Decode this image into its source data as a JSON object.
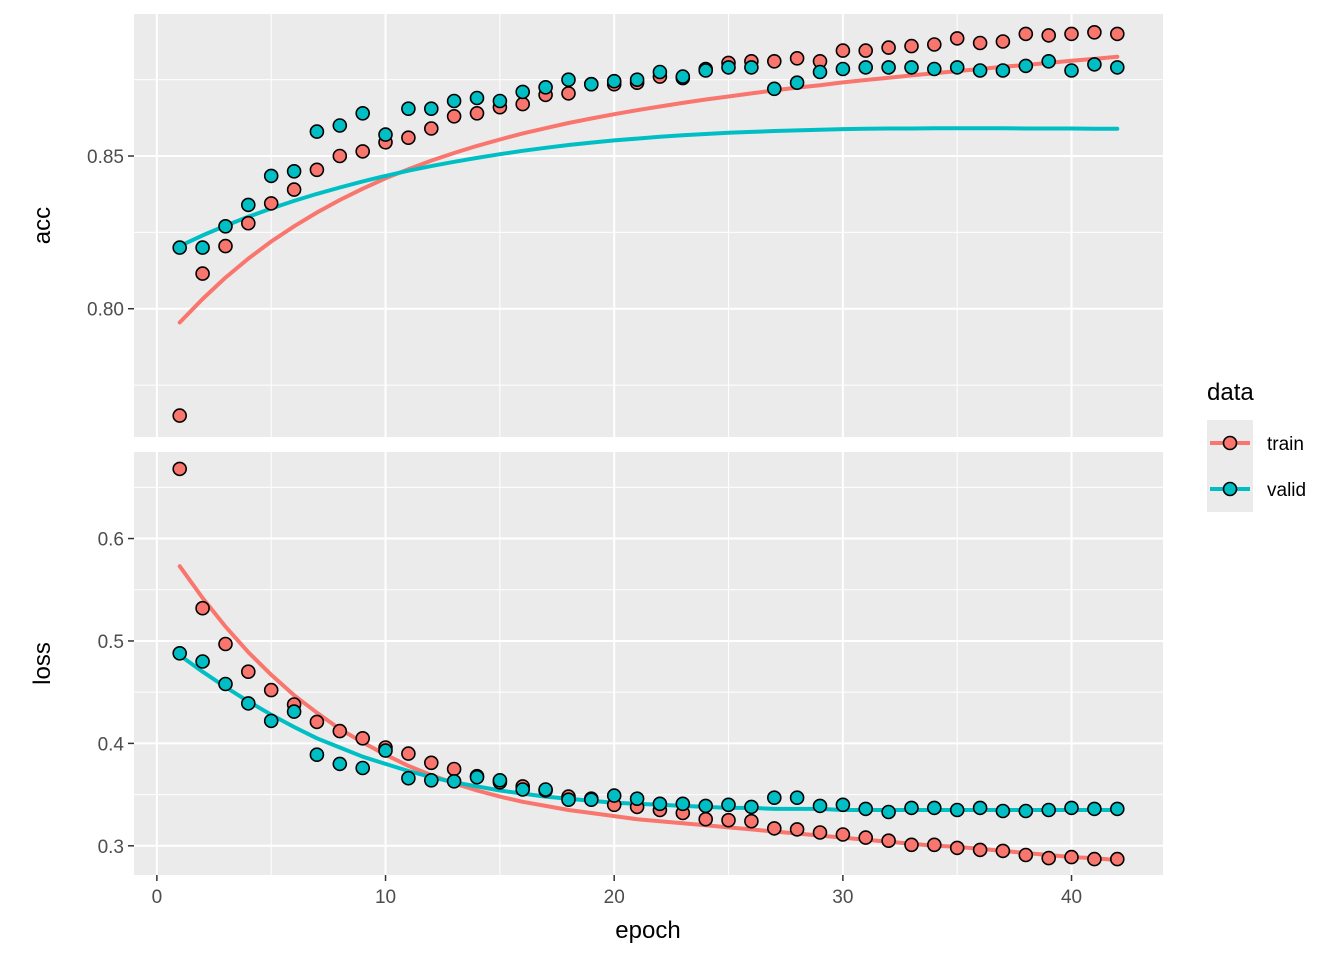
{
  "chart_data": {
    "type": "scatter",
    "xlabel": "epoch",
    "x_ticks": [
      "0",
      "10",
      "20",
      "30",
      "40"
    ],
    "xlim": [
      -1,
      44
    ],
    "legend": {
      "title": "data",
      "placement": "right",
      "entries": [
        {
          "label": "train",
          "color": "#F8766D"
        },
        {
          "label": "valid",
          "color": "#00BFC4"
        }
      ]
    },
    "panels": [
      {
        "label": "acc",
        "ylim": [
          0.758,
          0.8965
        ],
        "y_ticks": [
          "0.80",
          "0.85"
        ],
        "y_tick_values": [
          0.8,
          0.85
        ],
        "series": [
          {
            "name": "train",
            "color": "#F8766D",
            "x": [
              1,
              2,
              3,
              4,
              5,
              6,
              7,
              8,
              9,
              10,
              11,
              12,
              13,
              14,
              15,
              16,
              17,
              18,
              19,
              20,
              21,
              22,
              23,
              24,
              25,
              26,
              27,
              28,
              29,
              30,
              31,
              32,
              33,
              34,
              35,
              36,
              37,
              38,
              39,
              40,
              41,
              42
            ],
            "y": [
              0.765,
              0.8115,
              0.8205,
              0.828,
              0.8345,
              0.839,
              0.8455,
              0.85,
              0.8515,
              0.8545,
              0.856,
              0.859,
              0.863,
              0.864,
              0.866,
              0.867,
              0.87,
              0.8705,
              0.8735,
              0.8735,
              0.874,
              0.876,
              0.8755,
              0.8785,
              0.8805,
              0.881,
              0.881,
              0.882,
              0.881,
              0.8845,
              0.8845,
              0.8855,
              0.886,
              0.8865,
              0.8885,
              0.887,
              0.8875,
              0.89,
              0.8895,
              0.89,
              0.8905,
              0.89
            ],
            "smooth": [
              0.7955,
              0.8032,
              0.8102,
              0.8164,
              0.822,
              0.827,
              0.8315,
              0.8356,
              0.8393,
              0.8427,
              0.8457,
              0.8485,
              0.851,
              0.8533,
              0.8554,
              0.8574,
              0.8591,
              0.8608,
              0.8623,
              0.8637,
              0.865,
              0.8662,
              0.8674,
              0.8685,
              0.8695,
              0.8705,
              0.8715,
              0.8724,
              0.8732,
              0.8741,
              0.8749,
              0.8756,
              0.8764,
              0.8771,
              0.8778,
              0.8785,
              0.8792,
              0.8798,
              0.8805,
              0.8812,
              0.8818,
              0.8825
            ]
          },
          {
            "name": "valid",
            "color": "#00BFC4",
            "x": [
              1,
              2,
              3,
              4,
              5,
              6,
              7,
              8,
              9,
              10,
              11,
              12,
              13,
              14,
              15,
              16,
              17,
              18,
              19,
              20,
              21,
              22,
              23,
              24,
              25,
              26,
              27,
              28,
              29,
              30,
              31,
              32,
              33,
              34,
              35,
              36,
              37,
              38,
              39,
              40,
              41,
              42
            ],
            "y": [
              0.82,
              0.82,
              0.827,
              0.834,
              0.8435,
              0.845,
              0.858,
              0.86,
              0.864,
              0.857,
              0.8655,
              0.8655,
              0.868,
              0.869,
              0.868,
              0.871,
              0.8725,
              0.875,
              0.8735,
              0.8745,
              0.875,
              0.8775,
              0.876,
              0.878,
              0.879,
              0.879,
              0.872,
              0.874,
              0.8775,
              0.8785,
              0.879,
              0.879,
              0.879,
              0.8785,
              0.879,
              0.878,
              0.878,
              0.8795,
              0.881,
              0.878,
              0.88,
              0.879
            ],
            "smooth": [
              0.8205,
              0.824,
              0.8272,
              0.8301,
              0.8328,
              0.8353,
              0.8376,
              0.8397,
              0.8417,
              0.8435,
              0.8452,
              0.8467,
              0.8481,
              0.8494,
              0.8506,
              0.8517,
              0.8527,
              0.8536,
              0.8544,
              0.8551,
              0.8557,
              0.8563,
              0.8568,
              0.8572,
              0.8576,
              0.8579,
              0.8582,
              0.8584,
              0.8586,
              0.8588,
              0.8589,
              0.859,
              0.859,
              0.8591,
              0.8591,
              0.8591,
              0.8591,
              0.859,
              0.859,
              0.859,
              0.8589,
              0.8589
            ]
          }
        ]
      },
      {
        "label": "loss",
        "ylim": [
          0.2715,
          0.6845
        ],
        "y_ticks": [
          "0.3",
          "0.4",
          "0.5",
          "0.6"
        ],
        "y_tick_values": [
          0.3,
          0.4,
          0.5,
          0.6
        ],
        "series": [
          {
            "name": "train",
            "color": "#F8766D",
            "x": [
              1,
              2,
              3,
              4,
              5,
              6,
              7,
              8,
              9,
              10,
              11,
              12,
              13,
              14,
              15,
              16,
              17,
              18,
              19,
              20,
              21,
              22,
              23,
              24,
              25,
              26,
              27,
              28,
              29,
              30,
              31,
              32,
              33,
              34,
              35,
              36,
              37,
              38,
              39,
              40,
              41,
              42
            ],
            "y": [
              0.668,
              0.532,
              0.497,
              0.47,
              0.452,
              0.438,
              0.421,
              0.412,
              0.405,
              0.396,
              0.39,
              0.381,
              0.375,
              0.368,
              0.362,
              0.358,
              0.354,
              0.348,
              0.346,
              0.34,
              0.338,
              0.335,
              0.332,
              0.326,
              0.325,
              0.324,
              0.317,
              0.316,
              0.313,
              0.311,
              0.308,
              0.305,
              0.301,
              0.301,
              0.298,
              0.296,
              0.295,
              0.291,
              0.288,
              0.289,
              0.287,
              0.287
            ],
            "smooth": [
              0.573,
              0.542,
              0.514,
              0.489,
              0.467,
              0.447,
              0.43,
              0.414,
              0.401,
              0.389,
              0.378,
              0.369,
              0.361,
              0.354,
              0.348,
              0.343,
              0.339,
              0.335,
              0.332,
              0.329,
              0.326,
              0.324,
              0.322,
              0.32,
              0.318,
              0.316,
              0.314,
              0.312,
              0.31,
              0.308,
              0.306,
              0.304,
              0.302,
              0.3,
              0.299,
              0.297,
              0.295,
              0.293,
              0.291,
              0.289,
              0.288,
              0.286
            ]
          },
          {
            "name": "valid",
            "color": "#00BFC4",
            "x": [
              1,
              2,
              3,
              4,
              5,
              6,
              7,
              8,
              9,
              10,
              11,
              12,
              13,
              14,
              15,
              16,
              17,
              18,
              19,
              20,
              21,
              22,
              23,
              24,
              25,
              26,
              27,
              28,
              29,
              30,
              31,
              32,
              33,
              34,
              35,
              36,
              37,
              38,
              39,
              40,
              41,
              42
            ],
            "y": [
              0.488,
              0.48,
              0.458,
              0.439,
              0.422,
              0.431,
              0.389,
              0.38,
              0.376,
              0.393,
              0.366,
              0.364,
              0.363,
              0.367,
              0.364,
              0.355,
              0.355,
              0.345,
              0.345,
              0.349,
              0.346,
              0.341,
              0.341,
              0.339,
              0.34,
              0.338,
              0.347,
              0.347,
              0.339,
              0.34,
              0.336,
              0.333,
              0.337,
              0.337,
              0.335,
              0.337,
              0.334,
              0.334,
              0.335,
              0.337,
              0.336,
              0.336
            ],
            "smooth": [
              0.486,
              0.47,
              0.455,
              0.441,
              0.428,
              0.416,
              0.405,
              0.396,
              0.387,
              0.38,
              0.373,
              0.367,
              0.362,
              0.358,
              0.354,
              0.351,
              0.348,
              0.346,
              0.344,
              0.342,
              0.341,
              0.34,
              0.339,
              0.338,
              0.337,
              0.337,
              0.336,
              0.336,
              0.336,
              0.335,
              0.335,
              0.335,
              0.335,
              0.335,
              0.335,
              0.335,
              0.335,
              0.335,
              0.335,
              0.335,
              0.335,
              0.335
            ]
          }
        ]
      }
    ]
  }
}
